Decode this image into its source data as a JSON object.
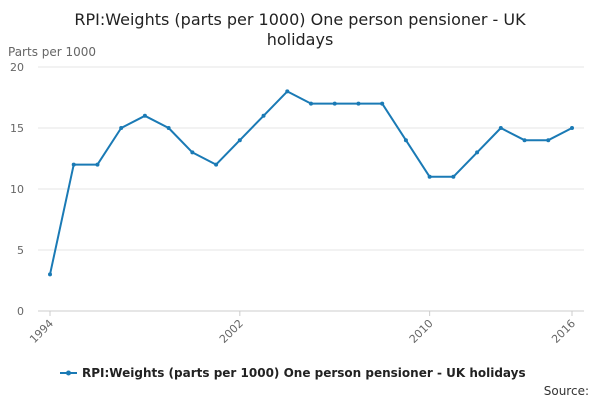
{
  "colors": {
    "series": "#1a7ab5"
  },
  "source_label": "Source:",
  "chart_data": {
    "type": "line",
    "title_line1": "RPI:Weights (parts per 1000) One person pensioner - UK",
    "title_line2": "holidays",
    "ylabel": "Parts per 1000",
    "xlabel": "",
    "ylim": [
      0,
      20
    ],
    "yticks": [
      0,
      5,
      10,
      15,
      20
    ],
    "xlim": [
      1994,
      2016
    ],
    "xticks": [
      1994,
      2002,
      2010,
      2016
    ],
    "grid": true,
    "legend_position": "bottom",
    "series": [
      {
        "name": "RPI:Weights (parts per 1000) One person pensioner - UK holidays",
        "x": [
          1994,
          1995,
          1996,
          1997,
          1998,
          1999,
          2000,
          2001,
          2002,
          2003,
          2004,
          2005,
          2006,
          2007,
          2008,
          2009,
          2010,
          2011,
          2012,
          2013,
          2014,
          2015,
          2016
        ],
        "values": [
          3,
          12,
          12,
          15,
          16,
          15,
          13,
          12,
          14,
          16,
          18,
          17,
          17,
          17,
          17,
          14,
          11,
          11,
          13,
          15,
          14,
          14,
          15
        ]
      }
    ]
  }
}
